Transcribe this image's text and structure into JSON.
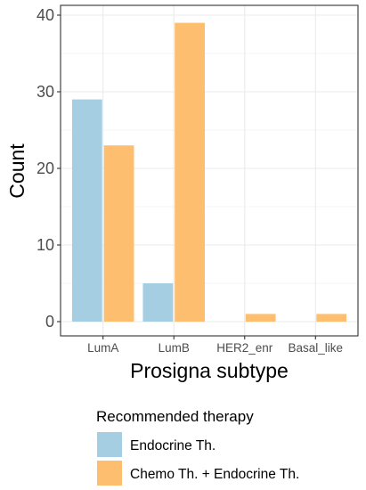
{
  "chart_data": {
    "type": "bar",
    "categories": [
      "LumA",
      "LumB",
      "HER2_enr",
      "Basal_like"
    ],
    "series": [
      {
        "name": "Endocrine Th.",
        "color": "#a6cee3",
        "values": [
          29,
          5,
          0,
          0
        ]
      },
      {
        "name": "Chemo Th. + Endocrine Th.",
        "color": "#fdbf6f",
        "values": [
          23,
          39,
          1,
          1
        ]
      }
    ],
    "xlabel": "Prosigna subtype",
    "ylabel": "Count",
    "ylim": [
      0,
      40
    ],
    "yticks": [
      0,
      10,
      20,
      30,
      40
    ],
    "grid": true,
    "legend_title": "Recommended therapy",
    "legend_position": "bottom"
  }
}
